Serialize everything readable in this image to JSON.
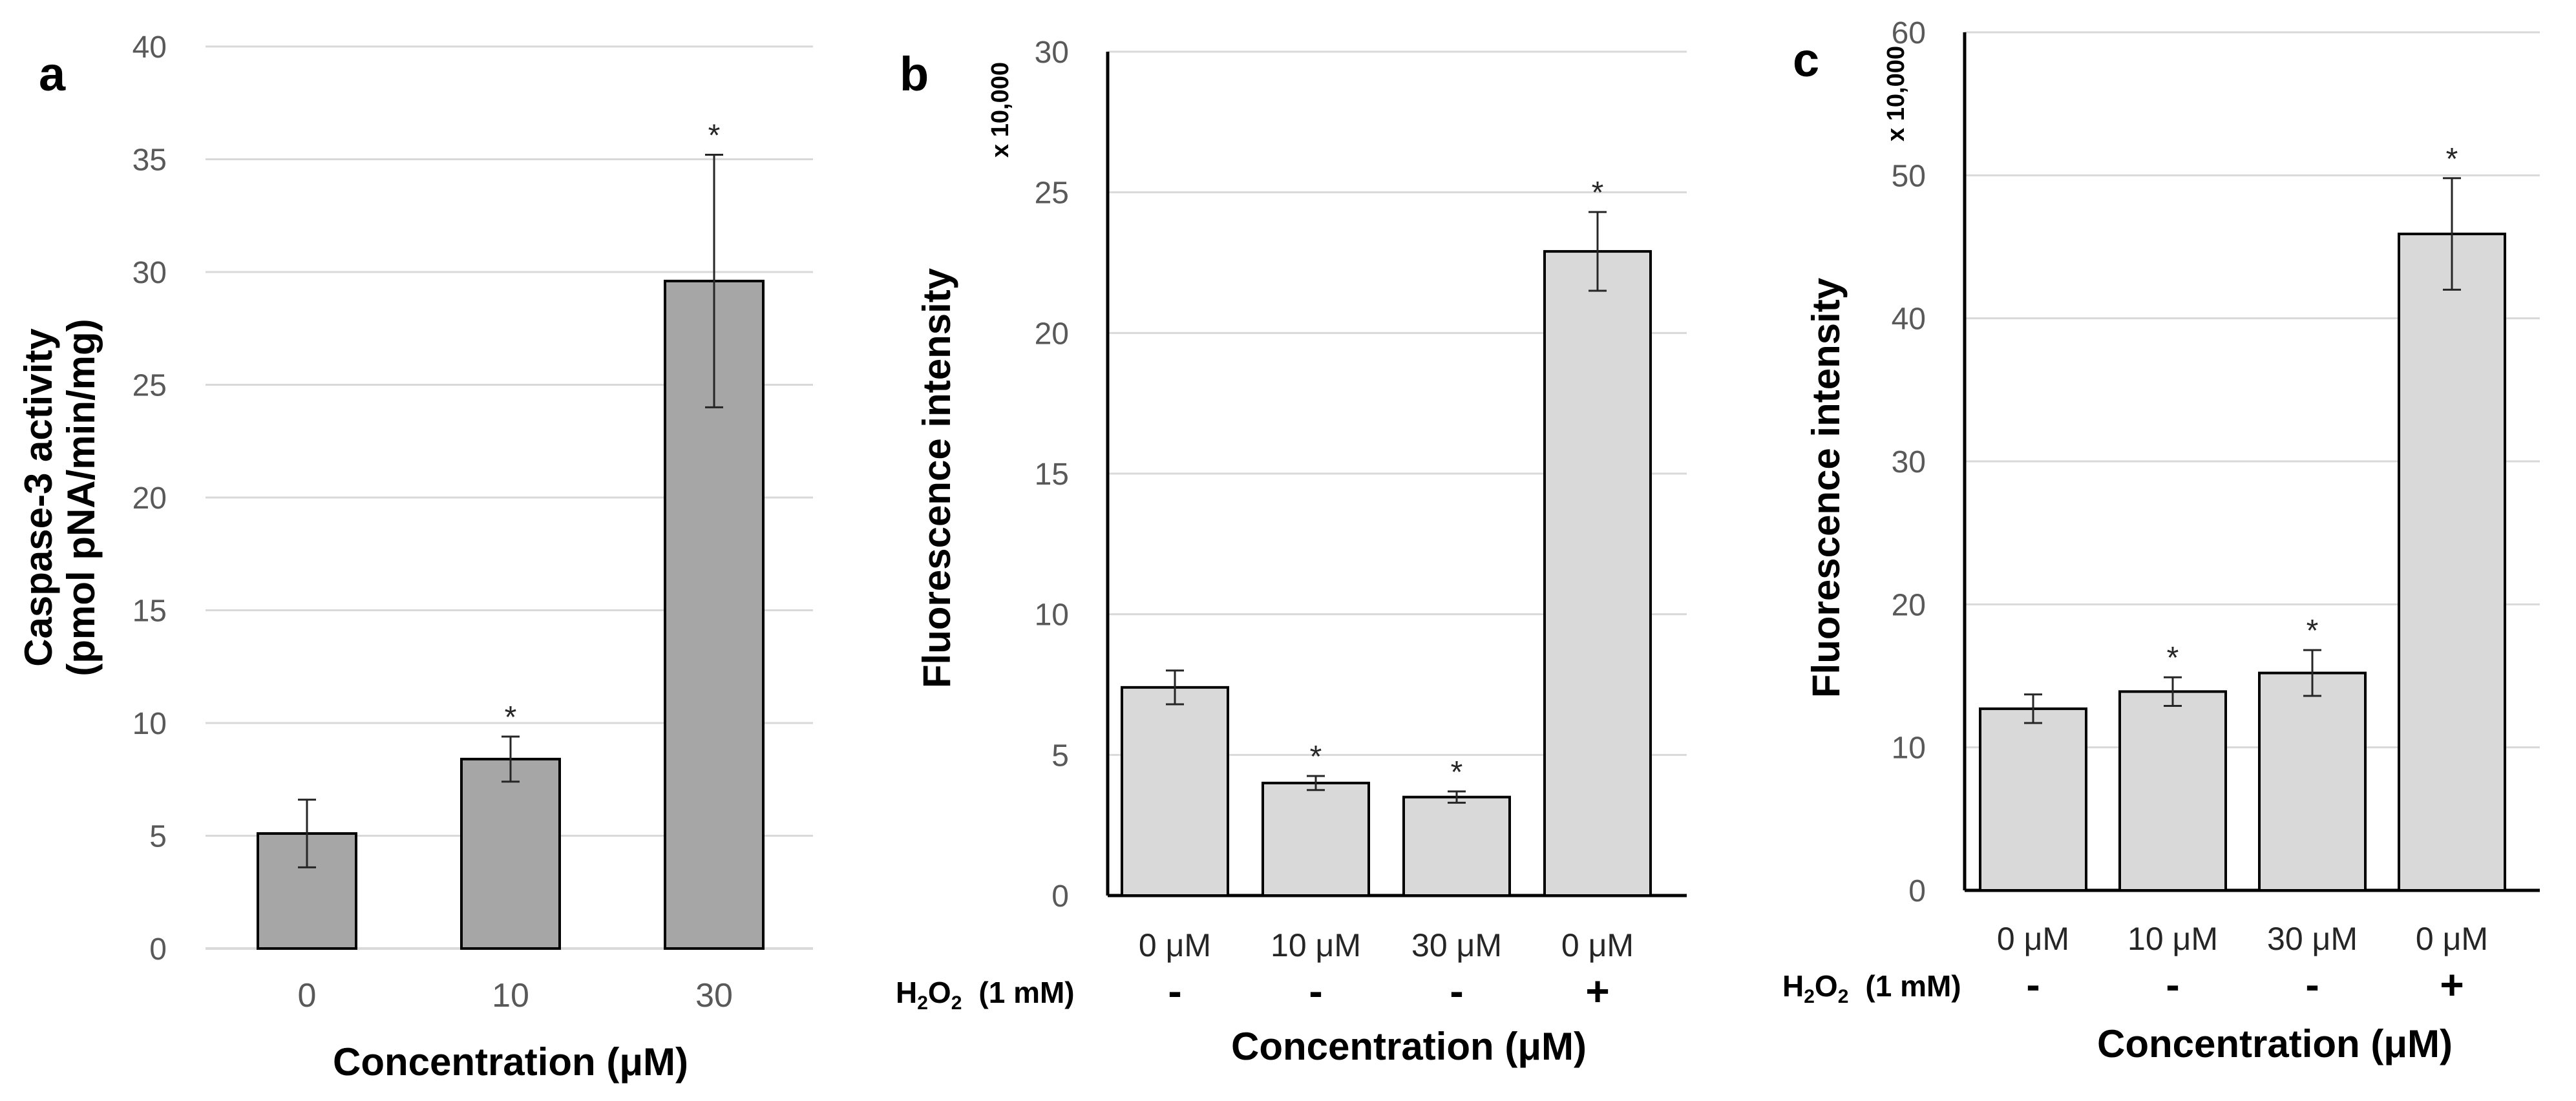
{
  "colors": {
    "bar_dark": "#a6a6a6",
    "bar_light": "#d9d9d9",
    "grid": "#d9d9d9",
    "axis": "#000000",
    "tick_text": "#595959"
  },
  "chart_data": [
    {
      "panel": "a",
      "type": "bar",
      "title": "",
      "ylabel_lines": [
        "Caspase-3 activity",
        "(pmol pNA/min/mg)"
      ],
      "xlabel": "Concentration (μM)",
      "categories": [
        "0",
        "10",
        "30"
      ],
      "values": [
        5.1,
        8.4,
        29.6
      ],
      "errors": [
        1.5,
        1.0,
        5.6
      ],
      "significance": [
        "",
        "*",
        "*"
      ],
      "ylim": [
        0,
        40
      ],
      "yticks": [
        0,
        5,
        10,
        15,
        20,
        25,
        30,
        35,
        40
      ],
      "grid": true
    },
    {
      "panel": "b",
      "type": "bar",
      "title": "",
      "ylabel": "Fluorescence intensity",
      "yscale_label": "x 10,000",
      "xlabel": "Concentration (μM)",
      "categories": [
        "0 μM",
        "10 μM",
        "30 μM",
        "0 μM"
      ],
      "values": [
        7.4,
        4.0,
        3.5,
        22.9
      ],
      "errors": [
        0.6,
        0.25,
        0.2,
        1.4
      ],
      "significance": [
        "",
        "*",
        "*",
        "*"
      ],
      "h2o2_label": "H",
      "h2o2_sub1": "2",
      "h2o2_mid": "O",
      "h2o2_sub2": "2",
      "h2o2_conc": "(1 mM)",
      "h2o2": [
        "-",
        "-",
        "-",
        "+"
      ],
      "ylim": [
        0,
        30
      ],
      "yticks": [
        0,
        5,
        10,
        15,
        20,
        25,
        30
      ],
      "grid": true
    },
    {
      "panel": "c",
      "type": "bar",
      "title": "",
      "ylabel": "Fluorescence intensity",
      "yscale_label": "x 10,000",
      "xlabel": "Concentration (μM)",
      "categories": [
        "0 μM",
        "10 μM",
        "30 μM",
        "0 μM"
      ],
      "values": [
        12.7,
        13.9,
        15.2,
        45.9
      ],
      "errors": [
        1.0,
        1.0,
        1.6,
        3.9
      ],
      "significance": [
        "",
        "*",
        "*",
        "*"
      ],
      "h2o2_label": "H",
      "h2o2_sub1": "2",
      "h2o2_mid": "O",
      "h2o2_sub2": "2",
      "h2o2_conc": "(1 mM)",
      "h2o2": [
        "-",
        "-",
        "-",
        "+"
      ],
      "ylim": [
        0,
        60
      ],
      "yticks": [
        0,
        10,
        20,
        30,
        40,
        50,
        60
      ],
      "grid": true
    }
  ]
}
